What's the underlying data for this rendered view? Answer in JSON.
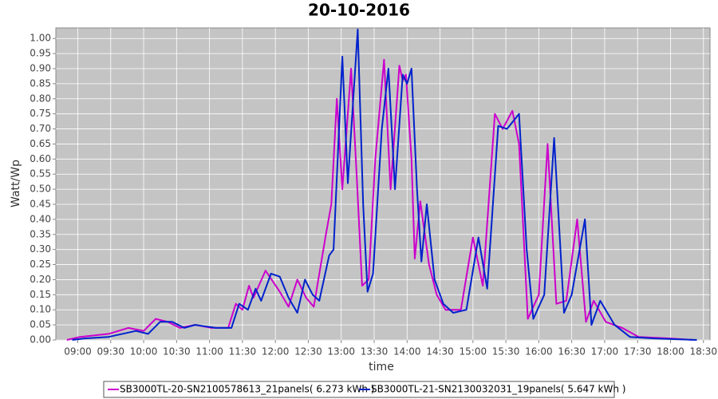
{
  "chart_data": {
    "type": "line",
    "title": "20-10-2016",
    "x_label": "time",
    "y_label": "Watt/Wp",
    "xlim": [
      "08:40",
      "18:36"
    ],
    "xticks": [
      "09:00",
      "09:30",
      "10:00",
      "10:30",
      "11:00",
      "11:30",
      "12:00",
      "12:30",
      "13:00",
      "13:30",
      "14:00",
      "14:30",
      "15:00",
      "15:30",
      "16:00",
      "16:30",
      "17:00",
      "17:30",
      "18:00",
      "18:30"
    ],
    "ylim": [
      0,
      1.035
    ],
    "yticks": [
      {
        "value": 0,
        "label": "0.00"
      },
      {
        "value": 0.05,
        "label": "0.05"
      },
      {
        "value": 0.1,
        "label": "0.10"
      },
      {
        "value": 0.15,
        "label": "0.15"
      },
      {
        "value": 0.2,
        "label": "0.20"
      },
      {
        "value": 0.25,
        "label": "0.25"
      },
      {
        "value": 0.3,
        "label": "0.30"
      },
      {
        "value": 0.35,
        "label": "0.35"
      },
      {
        "value": 0.4,
        "label": "0.40"
      },
      {
        "value": 0.45,
        "label": "0.45"
      },
      {
        "value": 0.5,
        "label": "0.50"
      },
      {
        "value": 0.55,
        "label": "0.55"
      },
      {
        "value": 0.6,
        "label": "0.60"
      },
      {
        "value": 0.65,
        "label": "0.65"
      },
      {
        "value": 0.7,
        "label": "0.70"
      },
      {
        "value": 0.75,
        "label": "0.75"
      },
      {
        "value": 0.8,
        "label": "0.80"
      },
      {
        "value": 0.85,
        "label": "0.85"
      },
      {
        "value": 0.9,
        "label": "0.90"
      },
      {
        "value": 0.95,
        "label": "0.95"
      },
      {
        "value": 1,
        "label": "1.00"
      }
    ],
    "grid": true,
    "legend": "bottom",
    "series": [
      {
        "name": "SB3000TL-20-SN2100578613_21panels( 6.273 kWh )",
        "color": "#cc00cc",
        "x": [
          "08:50",
          "09:02",
          "09:28",
          "09:46",
          "10:00",
          "10:11",
          "10:22",
          "10:33",
          "10:47",
          "11:02",
          "11:17",
          "11:24",
          "11:30",
          "11:36",
          "11:40",
          "11:51",
          "12:04",
          "12:12",
          "12:20",
          "12:28",
          "12:35",
          "12:46",
          "12:51",
          "12:56",
          "13:01",
          "13:09",
          "13:14",
          "13:19",
          "13:25",
          "13:31",
          "13:39",
          "13:45",
          "13:53",
          "13:56",
          "13:59",
          "14:04",
          "14:07",
          "14:12",
          "14:20",
          "14:27",
          "14:35",
          "14:49",
          "15:00",
          "15:09",
          "15:20",
          "15:27",
          "15:36",
          "15:42",
          "15:50",
          "16:00",
          "16:08",
          "16:16",
          "16:25",
          "16:35",
          "16:43",
          "16:50",
          "17:01",
          "17:16",
          "17:31",
          "18:00",
          "18:21"
        ],
        "values": [
          0,
          0.01,
          0.02,
          0.04,
          0.03,
          0.07,
          0.06,
          0.04,
          0.05,
          0.04,
          0.04,
          0.12,
          0.1,
          0.18,
          0.14,
          0.23,
          0.16,
          0.11,
          0.2,
          0.14,
          0.11,
          0.35,
          0.45,
          0.8,
          0.5,
          0.9,
          0.55,
          0.18,
          0.2,
          0.6,
          0.93,
          0.5,
          0.91,
          0.86,
          0.88,
          0.6,
          0.27,
          0.46,
          0.25,
          0.15,
          0.1,
          0.1,
          0.34,
          0.18,
          0.75,
          0.7,
          0.76,
          0.65,
          0.07,
          0.15,
          0.65,
          0.12,
          0.13,
          0.4,
          0.06,
          0.13,
          0.06,
          0.04,
          0.01,
          0.005,
          0
        ]
      },
      {
        "name": "SB3000TL-21-SN2130032031_19panels( 5.647 kWh )",
        "color": "#0022cc",
        "x": [
          "08:55",
          "09:06",
          "09:28",
          "09:53",
          "10:04",
          "10:15",
          "10:26",
          "10:37",
          "10:47",
          "11:06",
          "11:20",
          "11:27",
          "11:35",
          "11:42",
          "11:47",
          "11:56",
          "12:04",
          "12:12",
          "12:20",
          "12:27",
          "12:34",
          "12:40",
          "12:49",
          "12:53",
          "13:01",
          "13:06",
          "13:15",
          "13:20",
          "13:24",
          "13:29",
          "13:37",
          "13:43",
          "13:49",
          "13:56",
          "14:00",
          "14:04",
          "14:09",
          "14:13",
          "14:18",
          "14:25",
          "14:33",
          "14:42",
          "14:54",
          "15:05",
          "15:13",
          "15:23",
          "15:31",
          "15:42",
          "15:49",
          "15:55",
          "16:05",
          "16:14",
          "16:23",
          "16:30",
          "16:42",
          "16:48",
          "16:56",
          "17:09",
          "17:23",
          "17:45",
          "18:24"
        ],
        "values": [
          0,
          0.005,
          0.01,
          0.03,
          0.02,
          0.06,
          0.06,
          0.04,
          0.05,
          0.04,
          0.04,
          0.12,
          0.1,
          0.17,
          0.13,
          0.22,
          0.21,
          0.14,
          0.09,
          0.2,
          0.15,
          0.13,
          0.28,
          0.3,
          0.94,
          0.52,
          1.03,
          0.45,
          0.16,
          0.22,
          0.7,
          0.9,
          0.5,
          0.88,
          0.85,
          0.9,
          0.5,
          0.26,
          0.45,
          0.2,
          0.12,
          0.09,
          0.1,
          0.34,
          0.17,
          0.71,
          0.7,
          0.75,
          0.3,
          0.07,
          0.15,
          0.67,
          0.09,
          0.15,
          0.4,
          0.05,
          0.13,
          0.05,
          0.01,
          0.005,
          0
        ]
      }
    ]
  }
}
